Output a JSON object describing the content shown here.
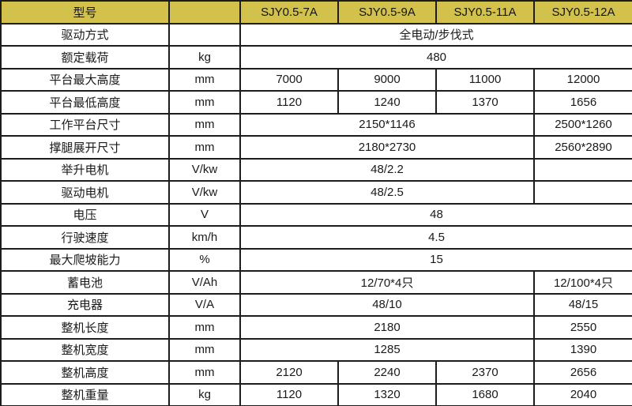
{
  "colors": {
    "header_bg": "#d2c24c",
    "border": "#1c1c1c"
  },
  "table": {
    "header": {
      "model_label": "型号",
      "unit_label": "",
      "models": [
        "SJY0.5-7A",
        "SJY0.5-9A",
        "SJY0.5-11A",
        "SJY0.5-12A"
      ]
    },
    "rows": [
      {
        "label": "驱动方式",
        "unit": "",
        "cells": [
          {
            "text": "全电动/步伐式",
            "span": 4
          }
        ]
      },
      {
        "label": "额定载荷",
        "unit": "kg",
        "cells": [
          {
            "text": "480",
            "span": 4
          }
        ]
      },
      {
        "label": "平台最大高度",
        "unit": "mm",
        "cells": [
          {
            "text": "7000",
            "span": 1
          },
          {
            "text": "9000",
            "span": 1
          },
          {
            "text": "11000",
            "span": 1
          },
          {
            "text": "12000",
            "span": 1
          }
        ]
      },
      {
        "label": "平台最低高度",
        "unit": "mm",
        "cells": [
          {
            "text": "1120",
            "span": 1
          },
          {
            "text": "1240",
            "span": 1
          },
          {
            "text": "1370",
            "span": 1
          },
          {
            "text": "1656",
            "span": 1
          }
        ]
      },
      {
        "label": "工作平台尺寸",
        "unit": "mm",
        "cells": [
          {
            "text": "2150*1146",
            "span": 3
          },
          {
            "text": "2500*1260",
            "span": 1
          }
        ]
      },
      {
        "label": "撑腿展开尺寸",
        "unit": "mm",
        "cells": [
          {
            "text": "2180*2730",
            "span": 3
          },
          {
            "text": "2560*2890",
            "span": 1
          }
        ]
      },
      {
        "label": "举升电机",
        "unit": "V/kw",
        "cells": [
          {
            "text": "48/2.2",
            "span": 3
          },
          {
            "text": "",
            "span": 1
          }
        ]
      },
      {
        "label": "驱动电机",
        "unit": "V/kw",
        "cells": [
          {
            "text": "48/2.5",
            "span": 3
          },
          {
            "text": "",
            "span": 1
          }
        ]
      },
      {
        "label": "电压",
        "unit": "V",
        "cells": [
          {
            "text": "48",
            "span": 4
          }
        ]
      },
      {
        "label": "行驶速度",
        "unit": "km/h",
        "cells": [
          {
            "text": "4.5",
            "span": 4
          }
        ]
      },
      {
        "label": "最大爬坡能力",
        "unit": "%",
        "cells": [
          {
            "text": "15",
            "span": 4
          }
        ]
      },
      {
        "label": "蓄电池",
        "unit": "V/Ah",
        "cells": [
          {
            "text": "12/70*4只",
            "span": 3
          },
          {
            "text": "12/100*4只",
            "span": 1
          }
        ]
      },
      {
        "label": "充电器",
        "unit": "V/A",
        "cells": [
          {
            "text": "48/10",
            "span": 3
          },
          {
            "text": "48/15",
            "span": 1
          }
        ]
      },
      {
        "label": "整机长度",
        "unit": "mm",
        "cells": [
          {
            "text": "2180",
            "span": 3
          },
          {
            "text": "2550",
            "span": 1
          }
        ]
      },
      {
        "label": "整机宽度",
        "unit": "mm",
        "cells": [
          {
            "text": "1285",
            "span": 3
          },
          {
            "text": "1390",
            "span": 1
          }
        ]
      },
      {
        "label": "整机高度",
        "unit": "mm",
        "cells": [
          {
            "text": "2120",
            "span": 1
          },
          {
            "text": "2240",
            "span": 1
          },
          {
            "text": "2370",
            "span": 1
          },
          {
            "text": "2656",
            "span": 1
          }
        ]
      },
      {
        "label": "整机重量",
        "unit": "kg",
        "cells": [
          {
            "text": "1120",
            "span": 1
          },
          {
            "text": "1320",
            "span": 1
          },
          {
            "text": "1680",
            "span": 1
          },
          {
            "text": "2040",
            "span": 1
          }
        ]
      }
    ]
  }
}
